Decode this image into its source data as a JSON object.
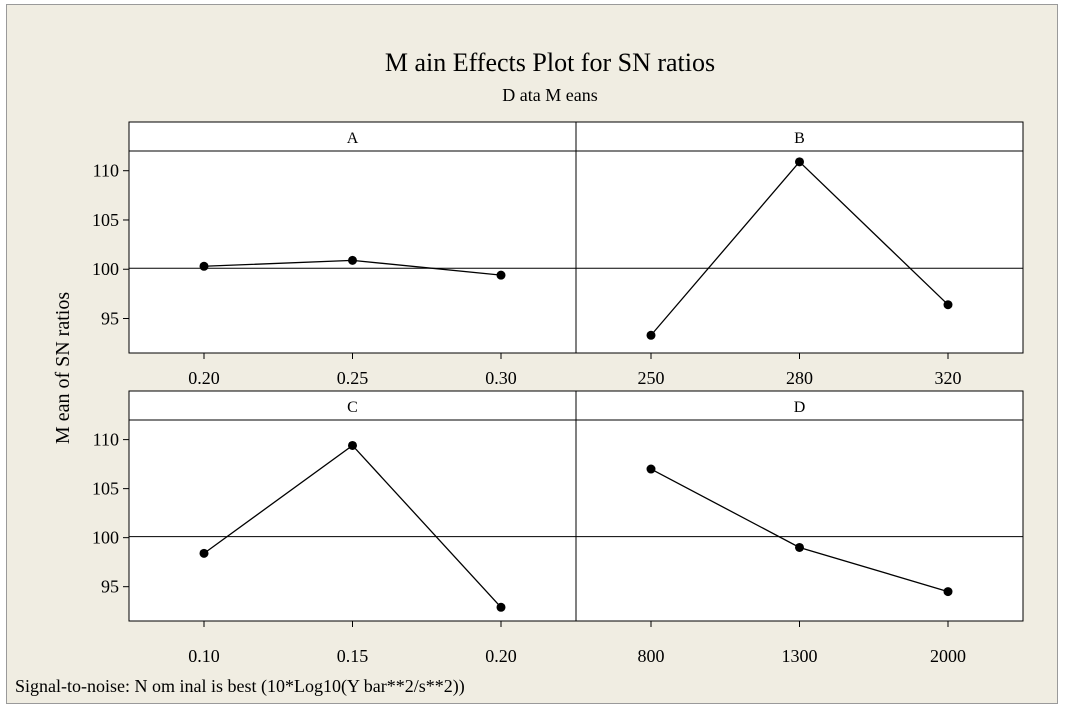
{
  "chart_data": {
    "type": "line",
    "title": "M ain Effects Plot for SN  ratios",
    "subtitle": "D ata M eans",
    "ylabel": "M ean of SN  ratios",
    "footnote": "Signal-to-noise: N om inal is best (10*Log10(Y bar**2/s**2))",
    "ylim": [
      91.5,
      112
    ],
    "yticks": [
      95,
      100,
      105,
      110
    ],
    "ytick_labels": [
      "95",
      "100",
      "105",
      "110"
    ],
    "reference_line": 100.1,
    "grid": false,
    "panels": [
      {
        "name": "A",
        "categories": [
          "0.20",
          "0.25",
          "0.30"
        ],
        "values": [
          100.3,
          100.9,
          99.4
        ]
      },
      {
        "name": "B",
        "categories": [
          "250",
          "280",
          "320"
        ],
        "values": [
          93.3,
          110.9,
          96.4
        ]
      },
      {
        "name": "C",
        "categories": [
          "0.10",
          "0.15",
          "0.20"
        ],
        "values": [
          98.4,
          109.4,
          92.9
        ]
      },
      {
        "name": "D",
        "categories": [
          "800",
          "1300",
          "2000"
        ],
        "values": [
          107.0,
          99.0,
          94.5
        ]
      }
    ],
    "colors": {
      "line": "#000000",
      "marker": "#000000",
      "panel_bg": "#ffffff",
      "figure_bg": "#f0ede2"
    }
  }
}
